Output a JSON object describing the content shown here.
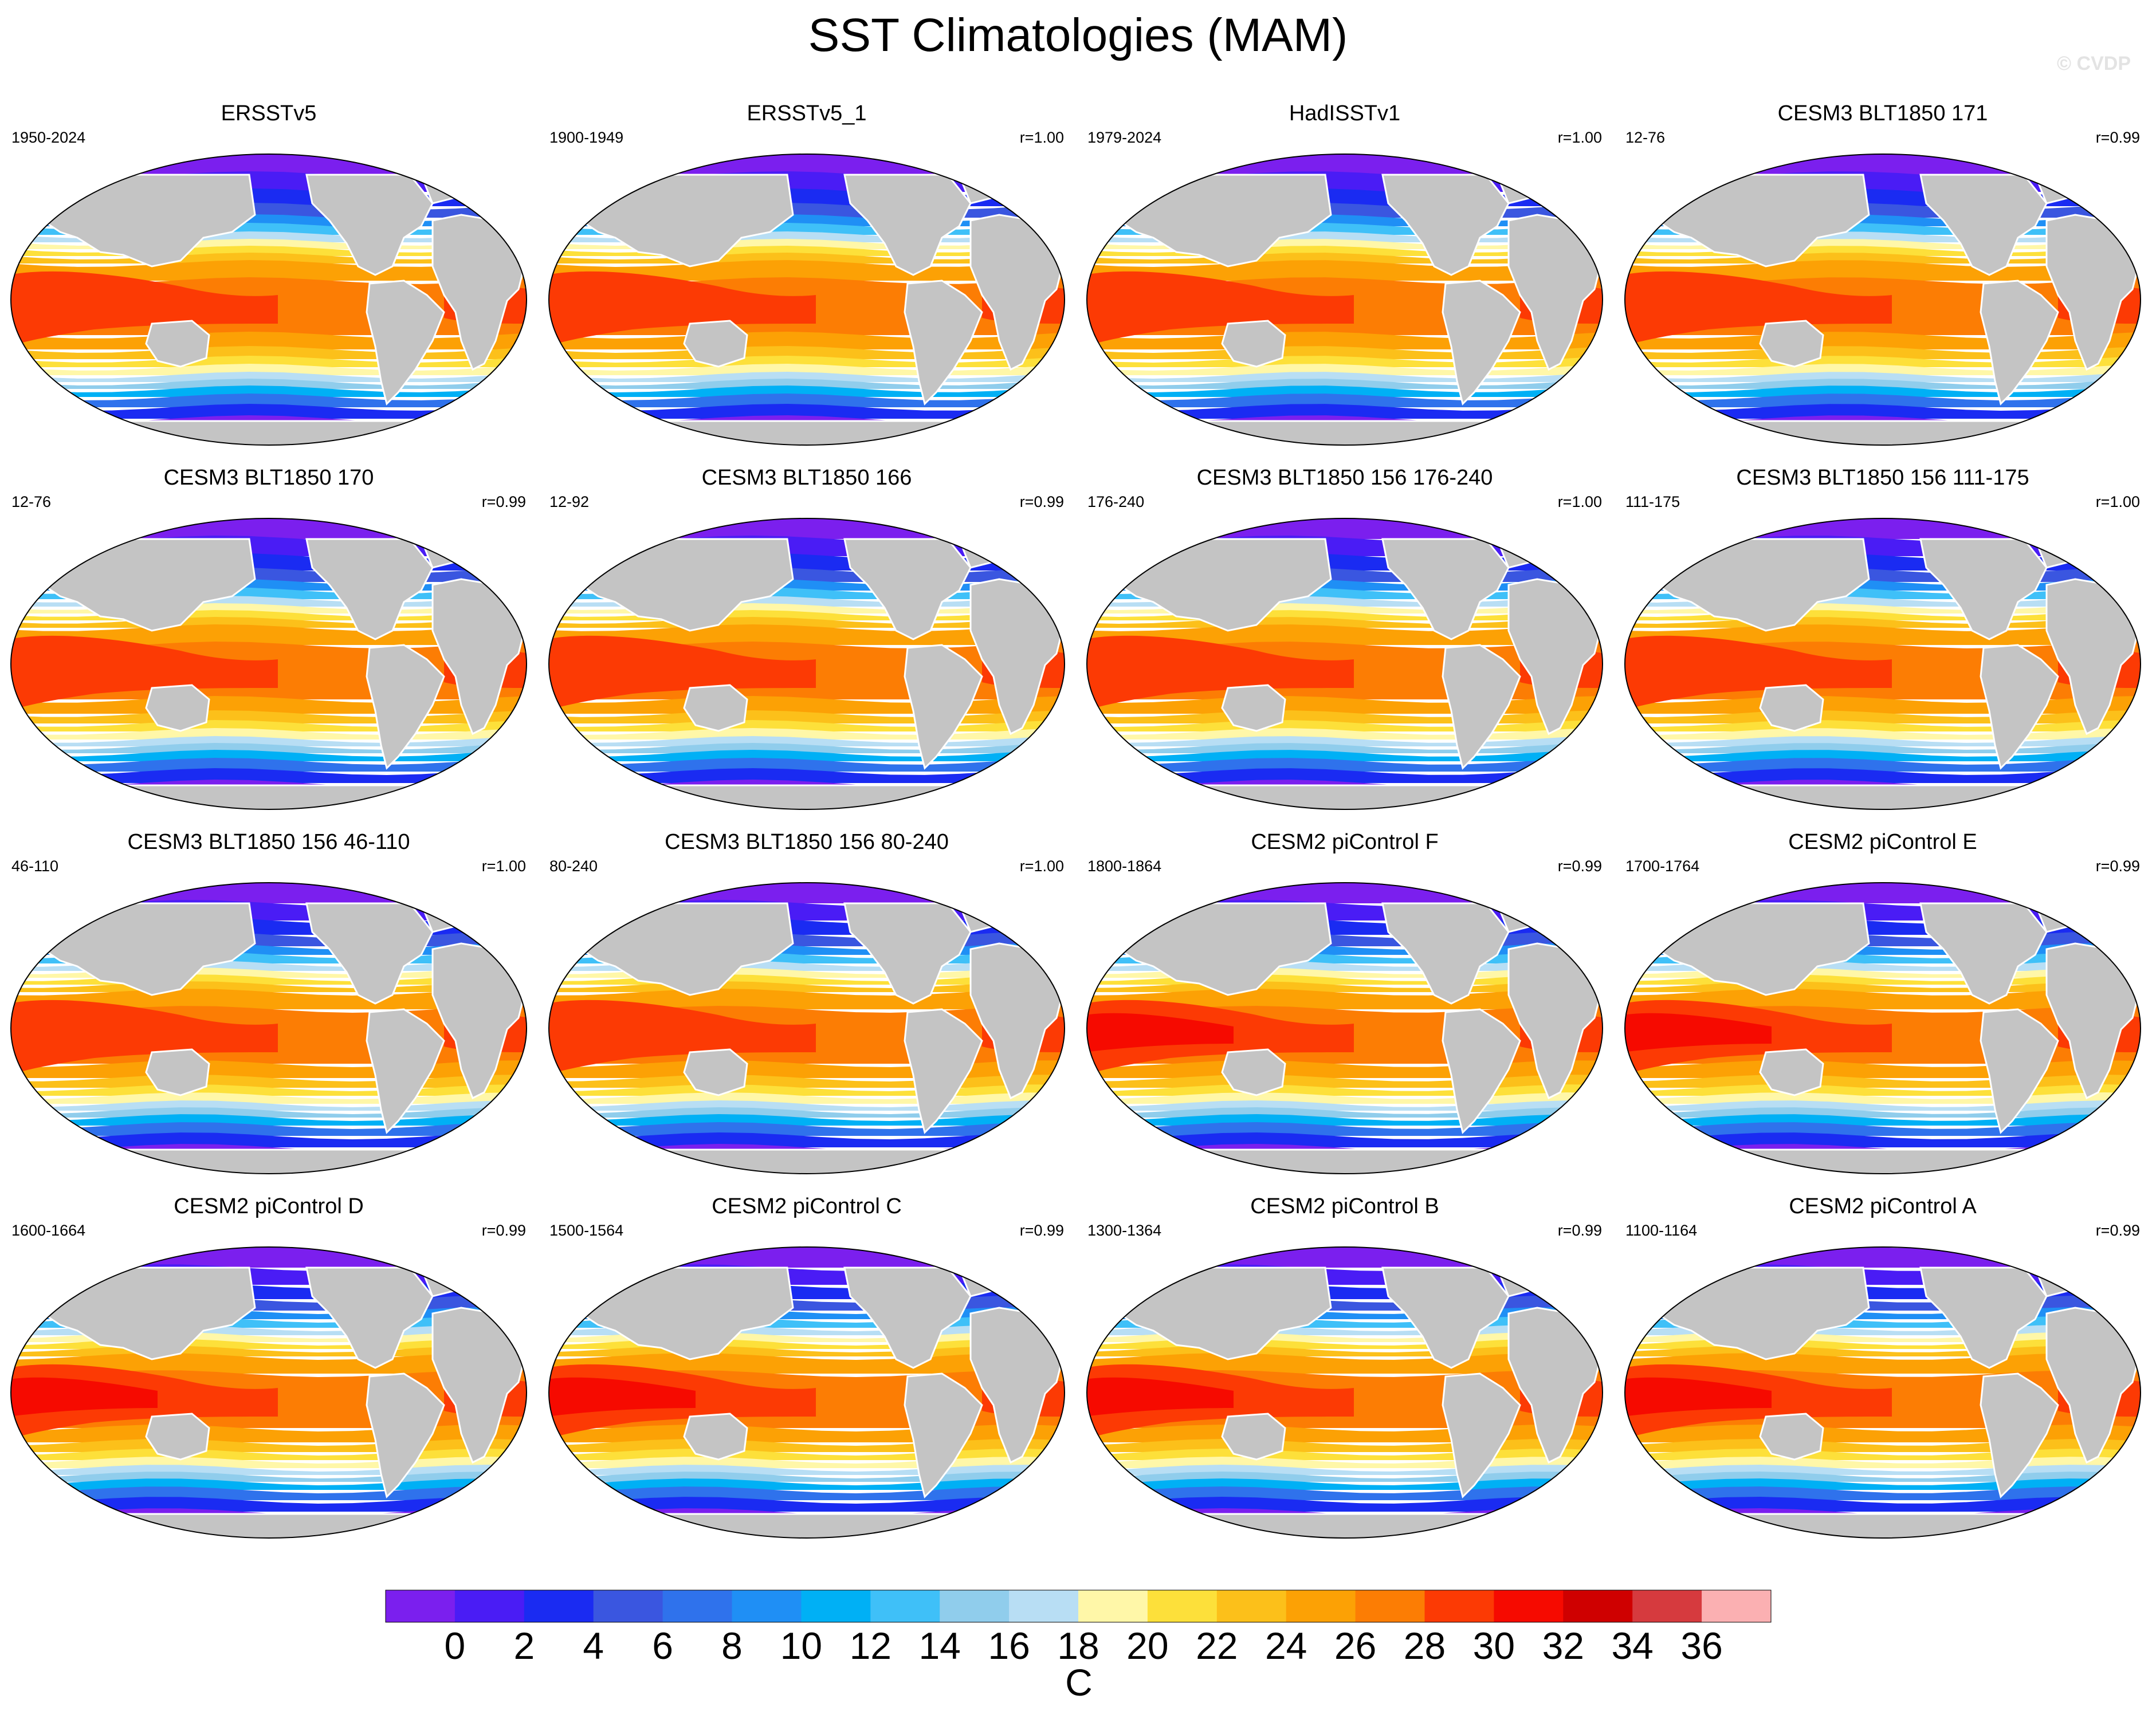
{
  "title": "SST Climatologies (MAM)",
  "watermark": "© CVDP",
  "panels": [
    {
      "title": "ERSSTv5",
      "period": "1950-2024",
      "corr": ""
    },
    {
      "title": "ERSSTv5_1",
      "period": "1900-1949",
      "corr": "r=1.00"
    },
    {
      "title": "HadISSTv1",
      "period": "1979-2024",
      "corr": "r=1.00"
    },
    {
      "title": "CESM3 BLT1850 171",
      "period": "12-76",
      "corr": "r=0.99"
    },
    {
      "title": "CESM3 BLT1850 170",
      "period": "12-76",
      "corr": "r=0.99"
    },
    {
      "title": "CESM3 BLT1850 166",
      "period": "12-92",
      "corr": "r=0.99"
    },
    {
      "title": "CESM3 BLT1850 156 176-240",
      "period": "176-240",
      "corr": "r=1.00"
    },
    {
      "title": "CESM3 BLT1850 156 111-175",
      "period": "111-175",
      "corr": "r=1.00"
    },
    {
      "title": "CESM3 BLT1850 156 46-110",
      "period": "46-110",
      "corr": "r=1.00"
    },
    {
      "title": "CESM3 BLT1850 156 80-240",
      "period": "80-240",
      "corr": "r=1.00"
    },
    {
      "title": "CESM2 piControl F",
      "period": "1800-1864",
      "corr": "r=0.99"
    },
    {
      "title": "CESM2 piControl E",
      "period": "1700-1764",
      "corr": "r=0.99"
    },
    {
      "title": "CESM2 piControl D",
      "period": "1600-1664",
      "corr": "r=0.99"
    },
    {
      "title": "CESM2 piControl C",
      "period": "1500-1564",
      "corr": "r=0.99"
    },
    {
      "title": "CESM2 piControl B",
      "period": "1300-1364",
      "corr": "r=0.99"
    },
    {
      "title": "CESM2 piControl A",
      "period": "1100-1164",
      "corr": "r=0.99"
    }
  ],
  "colorbar": {
    "units": "C",
    "labels": [
      "0",
      "2",
      "4",
      "6",
      "8",
      "10",
      "12",
      "14",
      "16",
      "18",
      "20",
      "22",
      "24",
      "26",
      "28",
      "30",
      "32",
      "34",
      "36"
    ],
    "colors": [
      "#7b1fee",
      "#4a1cf5",
      "#1a2bf2",
      "#3a56e0",
      "#2f72ec",
      "#1f8ff5",
      "#00b0f5",
      "#3fc0f8",
      "#90cdec",
      "#b8def4",
      "#fff7a8",
      "#fde03a",
      "#fcc01a",
      "#fca105",
      "#fc7d04",
      "#fc3a04",
      "#f60a00",
      "#cf0000",
      "#d63a3e",
      "#fbb0b2"
    ]
  },
  "map_colors": {
    "land": "#c4c4c4",
    "coast": "#ffffff"
  }
}
